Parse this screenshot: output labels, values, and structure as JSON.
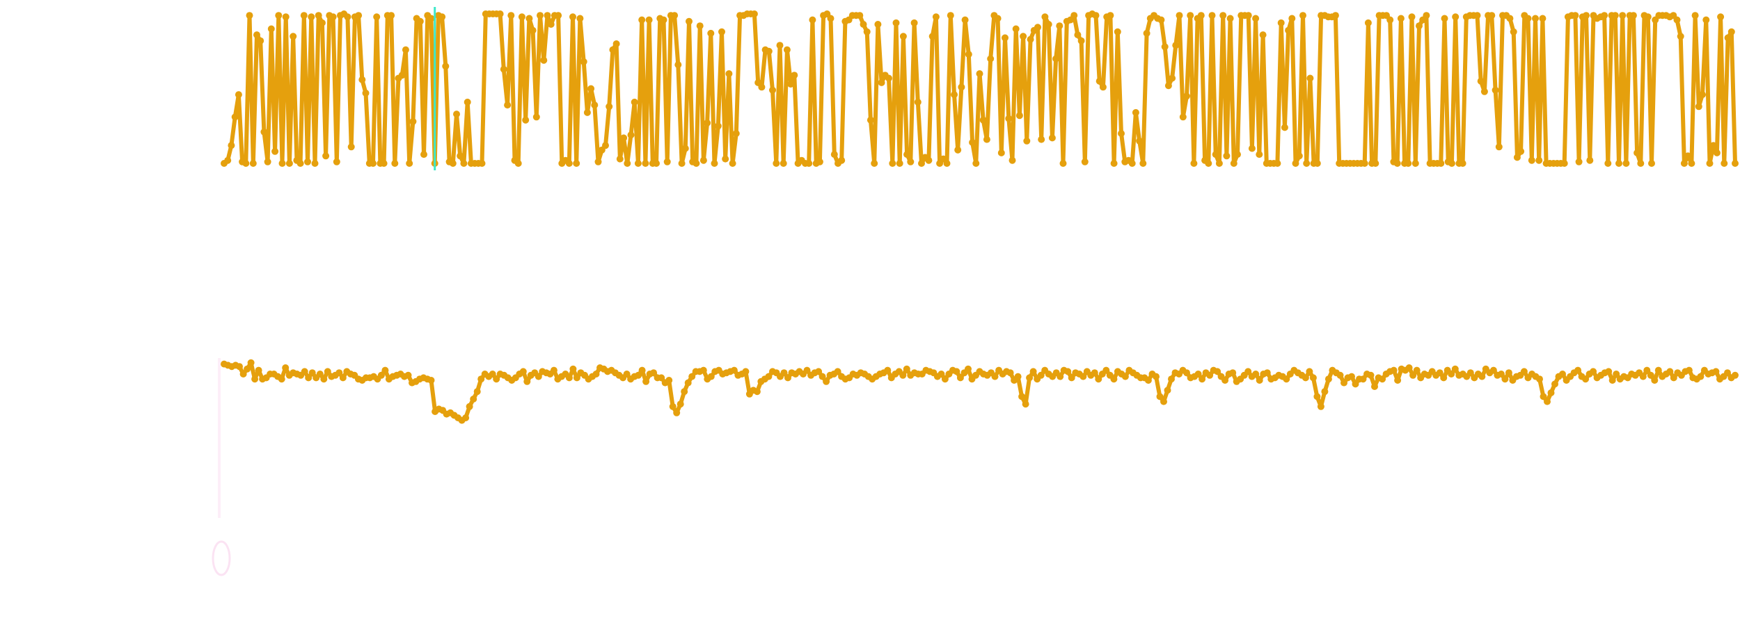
{
  "colors": {
    "series": "#e5a00d",
    "cursor": "#3de8c9",
    "faint_glyph": "#fbe3f3",
    "background": "#ffffff"
  },
  "chart_data": [
    {
      "type": "line",
      "title": "",
      "xlabel": "",
      "ylabel": "",
      "grid": false,
      "ylim": [
        0,
        1
      ],
      "cursor_at_index": 58,
      "values": [
        0.0,
        0.02,
        0.12,
        0.31,
        0.46,
        0.01,
        0.0,
        0.99,
        0.0,
        0.86,
        0.82,
        0.21,
        0.01,
        0.9,
        0.08,
        0.99,
        0.0,
        0.98,
        0.0,
        0.85,
        0.02,
        0.0,
        0.99,
        0.01,
        0.98,
        0.0,
        0.99,
        0.94,
        0.05,
        0.99,
        0.98,
        0.01,
        0.99,
        1.0,
        0.98,
        0.11,
        0.98,
        0.99,
        0.56,
        0.47,
        0.0,
        0.0,
        0.98,
        0.0,
        0.0,
        0.99,
        0.99,
        0.0,
        0.57,
        0.59,
        0.76,
        0.0,
        0.28,
        0.97,
        0.95,
        0.06,
        0.99,
        0.97,
        0.0,
        0.99,
        0.98,
        0.65,
        0.01,
        0.0,
        0.33,
        0.05,
        0.0,
        0.41,
        0.0,
        0.0,
        0.0,
        0.0,
        1.0,
        1.0,
        1.0,
        1.0,
        1.0,
        0.63,
        0.39,
        0.99,
        0.02,
        0.0,
        0.98,
        0.29,
        0.97,
        0.89,
        0.31,
        0.99,
        0.69,
        0.99,
        0.93,
        0.99,
        0.99,
        0.0,
        0.02,
        0.0,
        0.98,
        0.0,
        0.97,
        0.68,
        0.34,
        0.5,
        0.39,
        0.01,
        0.09,
        0.12,
        0.38,
        0.76,
        0.8,
        0.03,
        0.17,
        0.0,
        0.19,
        0.41,
        0.0,
        0.96,
        0.0,
        0.96,
        0.0,
        0.0,
        0.97,
        0.96,
        0.01,
        0.99,
        0.99,
        0.66,
        0.0,
        0.1,
        0.95,
        0.01,
        0.0,
        0.92,
        0.02,
        0.27,
        0.87,
        0.0,
        0.25,
        0.88,
        0.03,
        0.6,
        0.0,
        0.2,
        0.99,
        0.99,
        1.0,
        1.0,
        1.0,
        0.54,
        0.51,
        0.76,
        0.75,
        0.49,
        0.0,
        0.79,
        0.0,
        0.76,
        0.53,
        0.59,
        0.0,
        0.02,
        0.0,
        0.0,
        0.96,
        0.0,
        0.01,
        0.99,
        1.0,
        0.97,
        0.06,
        0.0,
        0.02,
        0.95,
        0.96,
        0.99,
        0.99,
        0.99,
        0.93,
        0.88,
        0.29,
        0.0,
        0.93,
        0.54,
        0.59,
        0.57,
        0.0,
        0.94,
        0.0,
        0.85,
        0.06,
        0.01,
        0.94,
        0.41,
        0.0,
        0.04,
        0.02,
        0.85,
        0.98,
        0.0,
        0.03,
        0.0,
        0.99,
        0.46,
        0.09,
        0.51,
        0.96,
        0.73,
        0.14,
        0.0,
        0.6,
        0.29,
        0.16,
        0.7,
        0.99,
        0.97,
        0.07,
        0.84,
        0.3,
        0.02,
        0.9,
        0.32,
        0.85,
        0.15,
        0.83,
        0.89,
        0.91,
        0.16,
        0.98,
        0.93,
        0.17,
        0.7,
        0.92,
        0.0,
        0.95,
        0.96,
        0.99,
        0.86,
        0.82,
        0.01,
        0.99,
        1.0,
        0.99,
        0.55,
        0.51,
        0.98,
        0.99,
        0.0,
        0.88,
        0.2,
        0.01,
        0.02,
        0.0,
        0.34,
        0.15,
        0.0,
        0.87,
        0.97,
        0.99,
        0.97,
        0.96,
        0.78,
        0.52,
        0.57,
        0.79,
        0.99,
        0.31,
        0.45,
        0.99,
        0.0,
        0.97,
        0.99,
        0.02,
        0.0,
        0.99,
        0.06,
        0.0,
        0.99,
        0.05,
        0.97,
        0.0,
        0.06,
        0.99,
        0.99,
        0.99,
        0.1,
        0.97,
        0.06,
        0.86,
        0.0,
        0.0,
        0.0,
        0.0,
        0.94,
        0.24,
        0.89,
        0.97,
        0.0,
        0.05,
        0.99,
        0.0,
        0.57,
        0.0,
        0.0,
        0.99,
        0.99,
        0.98,
        0.98,
        0.99,
        0.0,
        0.0,
        0.0,
        0.0,
        0.0,
        0.0,
        0.0,
        0.0,
        0.94,
        0.0,
        0.0,
        0.99,
        0.99,
        0.99,
        0.96,
        0.01,
        0.0,
        0.97,
        0.0,
        0.0,
        0.98,
        0.0,
        0.92,
        0.96,
        0.99,
        0.0,
        0.0,
        0.0,
        0.0,
        0.97,
        0.01,
        0.0,
        0.98,
        0.0,
        0.0,
        0.98,
        0.99,
        0.99,
        0.99,
        0.55,
        0.48,
        0.99,
        0.99,
        0.49,
        0.11,
        0.99,
        0.99,
        0.97,
        0.88,
        0.04,
        0.08,
        0.99,
        0.97,
        0.02,
        0.97,
        0.02,
        0.97,
        0.0,
        0.0,
        0.0,
        0.0,
        0.0,
        0.0,
        0.98,
        0.99,
        0.99,
        0.01,
        0.98,
        0.99,
        0.02,
        0.99,
        0.97,
        0.98,
        0.99,
        0.0,
        0.99,
        0.99,
        0.0,
        0.99,
        0.0,
        0.99,
        0.99,
        0.07,
        0.0,
        0.99,
        0.98,
        0.0,
        0.96,
        0.99,
        0.99,
        0.99,
        0.98,
        0.99,
        0.96,
        0.85,
        0.0,
        0.05,
        0.0,
        0.99,
        0.38,
        0.46,
        0.96,
        0.0,
        0.12,
        0.07,
        0.98,
        0.0,
        0.84,
        0.88,
        0.0
      ]
    },
    {
      "type": "line",
      "title": "",
      "xlabel": "",
      "ylabel": "",
      "grid": false,
      "ylim": [
        0,
        1
      ],
      "values": [
        0.98,
        0.97,
        0.96,
        0.97,
        0.96,
        0.9,
        0.94,
        0.99,
        0.86,
        0.93,
        0.86,
        0.87,
        0.9,
        0.9,
        0.88,
        0.86,
        0.95,
        0.89,
        0.91,
        0.9,
        0.89,
        0.92,
        0.87,
        0.91,
        0.87,
        0.9,
        0.86,
        0.92,
        0.88,
        0.89,
        0.91,
        0.87,
        0.92,
        0.9,
        0.89,
        0.86,
        0.85,
        0.87,
        0.87,
        0.88,
        0.86,
        0.89,
        0.93,
        0.86,
        0.88,
        0.89,
        0.9,
        0.88,
        0.89,
        0.83,
        0.84,
        0.86,
        0.87,
        0.86,
        0.85,
        0.6,
        0.62,
        0.61,
        0.58,
        0.59,
        0.57,
        0.55,
        0.53,
        0.55,
        0.64,
        0.7,
        0.76,
        0.86,
        0.9,
        0.88,
        0.9,
        0.86,
        0.9,
        0.89,
        0.87,
        0.85,
        0.87,
        0.9,
        0.92,
        0.84,
        0.89,
        0.91,
        0.88,
        0.92,
        0.91,
        0.9,
        0.93,
        0.86,
        0.88,
        0.9,
        0.87,
        0.94,
        0.87,
        0.91,
        0.89,
        0.86,
        0.88,
        0.9,
        0.95,
        0.94,
        0.92,
        0.93,
        0.91,
        0.89,
        0.87,
        0.9,
        0.86,
        0.88,
        0.89,
        0.93,
        0.84,
        0.9,
        0.91,
        0.87,
        0.87,
        0.83,
        0.85,
        0.64,
        0.59,
        0.66,
        0.76,
        0.83,
        0.88,
        0.92,
        0.92,
        0.93,
        0.86,
        0.88,
        0.92,
        0.93,
        0.9,
        0.91,
        0.92,
        0.93,
        0.89,
        0.9,
        0.92,
        0.74,
        0.77,
        0.76,
        0.84,
        0.86,
        0.88,
        0.92,
        0.91,
        0.88,
        0.91,
        0.87,
        0.91,
        0.9,
        0.92,
        0.9,
        0.93,
        0.89,
        0.91,
        0.92,
        0.88,
        0.84,
        0.89,
        0.9,
        0.92,
        0.88,
        0.86,
        0.87,
        0.9,
        0.89,
        0.91,
        0.9,
        0.88,
        0.86,
        0.88,
        0.9,
        0.91,
        0.93,
        0.87,
        0.9,
        0.92,
        0.89,
        0.94,
        0.89,
        0.91,
        0.9,
        0.9,
        0.93,
        0.92,
        0.91,
        0.88,
        0.9,
        0.86,
        0.9,
        0.93,
        0.92,
        0.87,
        0.91,
        0.94,
        0.86,
        0.89,
        0.92,
        0.9,
        0.89,
        0.91,
        0.88,
        0.93,
        0.9,
        0.92,
        0.91,
        0.85,
        0.88,
        0.72,
        0.66,
        0.87,
        0.92,
        0.86,
        0.89,
        0.93,
        0.9,
        0.88,
        0.91,
        0.88,
        0.93,
        0.92,
        0.87,
        0.91,
        0.9,
        0.88,
        0.92,
        0.89,
        0.91,
        0.86,
        0.9,
        0.93,
        0.89,
        0.86,
        0.92,
        0.9,
        0.88,
        0.93,
        0.91,
        0.89,
        0.87,
        0.87,
        0.85,
        0.9,
        0.88,
        0.72,
        0.68,
        0.77,
        0.86,
        0.91,
        0.9,
        0.93,
        0.91,
        0.87,
        0.88,
        0.9,
        0.86,
        0.91,
        0.89,
        0.93,
        0.92,
        0.88,
        0.85,
        0.9,
        0.91,
        0.84,
        0.86,
        0.89,
        0.92,
        0.88,
        0.9,
        0.85,
        0.9,
        0.91,
        0.86,
        0.87,
        0.89,
        0.88,
        0.86,
        0.9,
        0.93,
        0.91,
        0.89,
        0.87,
        0.92,
        0.87,
        0.72,
        0.64,
        0.76,
        0.86,
        0.93,
        0.91,
        0.89,
        0.83,
        0.87,
        0.88,
        0.82,
        0.86,
        0.86,
        0.9,
        0.89,
        0.8,
        0.87,
        0.86,
        0.9,
        0.92,
        0.93,
        0.85,
        0.94,
        0.93,
        0.95,
        0.89,
        0.93,
        0.87,
        0.9,
        0.89,
        0.92,
        0.89,
        0.91,
        0.87,
        0.93,
        0.9,
        0.94,
        0.89,
        0.9,
        0.88,
        0.91,
        0.87,
        0.9,
        0.88,
        0.94,
        0.91,
        0.93,
        0.89,
        0.9,
        0.86,
        0.91,
        0.85,
        0.88,
        0.89,
        0.92,
        0.87,
        0.9,
        0.88,
        0.86,
        0.72,
        0.68,
        0.75,
        0.82,
        0.88,
        0.9,
        0.85,
        0.88,
        0.91,
        0.93,
        0.88,
        0.86,
        0.9,
        0.92,
        0.87,
        0.89,
        0.91,
        0.92,
        0.85,
        0.9,
        0.86,
        0.88,
        0.87,
        0.9,
        0.89,
        0.91,
        0.88,
        0.93,
        0.89,
        0.85,
        0.93,
        0.88,
        0.9,
        0.92,
        0.87,
        0.91,
        0.89,
        0.92,
        0.93,
        0.87,
        0.86,
        0.88,
        0.93,
        0.9,
        0.91,
        0.92,
        0.86,
        0.88,
        0.91,
        0.87,
        0.89
      ]
    }
  ]
}
